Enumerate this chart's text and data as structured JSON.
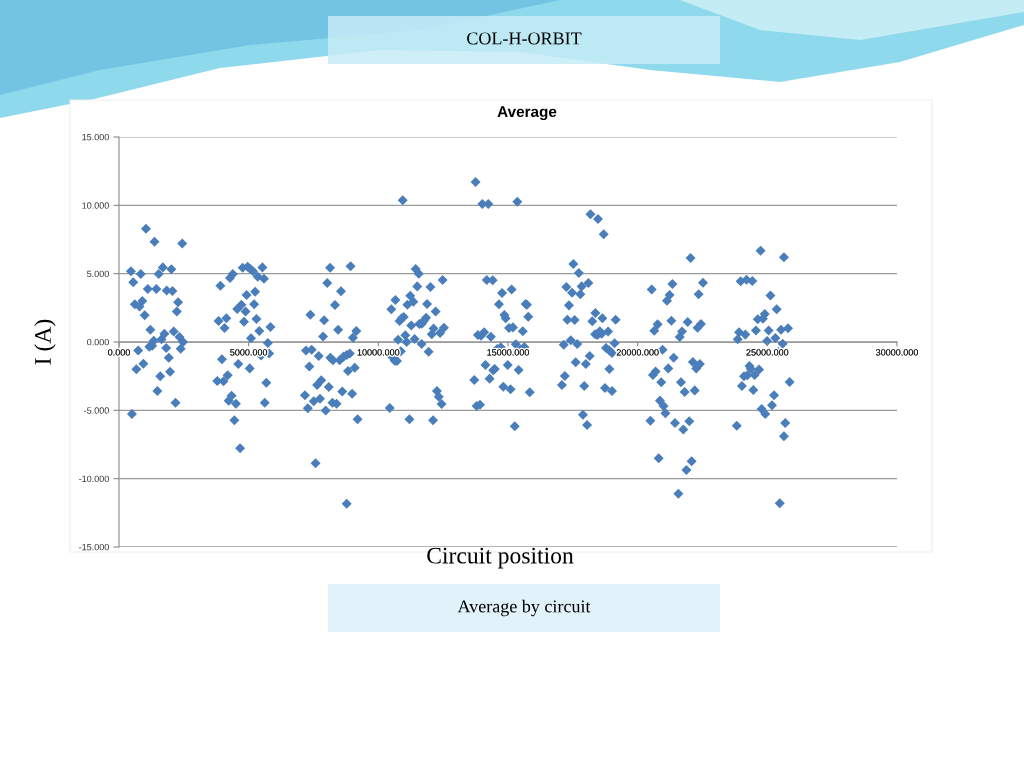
{
  "chart_data": {
    "type": "scatter",
    "title": "Average",
    "xlabel": "Circuit position",
    "ylabel": "I (A)",
    "annotations": [
      "COL-H-ORBIT",
      "Average by circuit"
    ],
    "color": "#4a7ebb",
    "marker": "diamond",
    "grid": "y",
    "xlim": [
      0,
      30000
    ],
    "ylim": [
      -15,
      15
    ],
    "xticks": [
      {
        "value": 0,
        "label": "0.000"
      },
      {
        "value": 5000,
        "label": "5000.000"
      },
      {
        "value": 10000,
        "label": "10000.000"
      },
      {
        "value": 15000,
        "label": "15000.000"
      },
      {
        "value": 20000,
        "label": "20000.000"
      },
      {
        "value": 25000,
        "label": "25000.000"
      },
      {
        "value": 30000,
        "label": "30000.000"
      }
    ],
    "yticks": [
      {
        "value": -15,
        "label": "-15.000"
      },
      {
        "value": -10,
        "label": "-10.000"
      },
      {
        "value": -5,
        "label": "-5.000"
      },
      {
        "value": 0,
        "label": "0.000"
      },
      {
        "value": 5,
        "label": "5.000"
      },
      {
        "value": 10,
        "label": "10.000"
      },
      {
        "value": 15,
        "label": "15.000"
      }
    ],
    "x": [
      460,
      550,
      1040,
      1370,
      2440,
      840,
      1690,
      1530,
      2020,
      1110,
      1440,
      1840,
      2060,
      610,
      790,
      900,
      990,
      2280,
      2230,
      1210,
      1750,
      2110,
      2330,
      2470,
      1340,
      1640,
      1170,
      1280,
      1820,
      2380,
      740,
      1920,
      670,
      940,
      1590,
      1970,
      1480,
      2180,
      500,
      3910,
      3840,
      4070,
      4140,
      4280,
      4390,
      4770,
      4960,
      5060,
      5170,
      5350,
      5530,
      5590,
      4920,
      5250,
      4720,
      4560,
      4880,
      5210,
      4820,
      5300,
      5410,
      5840,
      5090,
      5740,
      5480,
      5790,
      3970,
      4600,
      5040,
      4190,
      3790,
      4030,
      5680,
      4340,
      4230,
      4510,
      5620,
      4450,
      4670,
      7380,
      7210,
      7430,
      7340,
      7700,
      8140,
      8030,
      8930,
      8560,
      8330,
      7910,
      7870,
      8450,
      9150,
      9020,
      8150,
      8250,
      8510,
      8660,
      8780,
      8900,
      8830,
      9090,
      7640,
      7800,
      8090,
      8610,
      8990,
      7170,
      7510,
      7750,
      8230,
      8390,
      7280,
      7970,
      9200,
      7580,
      8780,
      10940,
      10500,
      10660,
      10490,
      10630,
      10720,
      10440,
      10870,
      10760,
      11040,
      11090,
      10820,
      10900,
      10980,
      11120,
      11230,
      11350,
      11440,
      11560,
      11500,
      11270,
      11400,
      11670,
      11580,
      11680,
      11760,
      11840,
      11880,
      12010,
      12210,
      12130,
      12060,
      12380,
      12530,
      12480,
      11940,
      12260,
      12330,
      12440,
      11200,
      12110,
      13750,
      14010,
      14240,
      15360,
      14180,
      14410,
      14770,
      15140,
      14650,
      14860,
      14910,
      15040,
      15190,
      15570,
      15680,
      15730,
      15780,
      13840,
      13960,
      14080,
      14340,
      15300,
      15480,
      15630,
      14580,
      14720,
      14130,
      14990,
      14490,
      14430,
      15410,
      14290,
      13700,
      14820,
      15100,
      15840,
      13790,
      13920,
      15260,
      17520,
      17730,
      17250,
      17470,
      17790,
      17840,
      18100,
      18180,
      18470,
      18690,
      17350,
      17290,
      17570,
      18370,
      18250,
      18640,
      19150,
      18360,
      18450,
      18540,
      18610,
      18860,
      17420,
      17150,
      17670,
      19110,
      18780,
      18900,
      19010,
      18150,
      17610,
      18000,
      18910,
      17190,
      17080,
      17940,
      18740,
      19010,
      17890,
      18050,
      20540,
      22040,
      21340,
      21230,
      21130,
      22350,
      22520,
      20770,
      20640,
      21300,
      21710,
      21620,
      21930,
      22310,
      22440,
      20960,
      21390,
      22130,
      22260,
      22400,
      20690,
      20590,
      21180,
      20910,
      21670,
      21810,
      22200,
      20860,
      21000,
      21070,
      20490,
      21440,
      21760,
      21990,
      20810,
      22080,
      21880,
      21570,
      24740,
      25640,
      23970,
      24200,
      24420,
      25120,
      25360,
      24900,
      24830,
      24630,
      24560,
      25050,
      25530,
      25800,
      23910,
      24150,
      23860,
      24990,
      25310,
      25590,
      25420,
      24310,
      24360,
      24230,
      24100,
      24510,
      24680,
      24020,
      24460,
      25860,
      25260,
      25180,
      24780,
      24920,
      23820,
      25690,
      25640,
      25480
    ],
    "values": [
      5.17,
      4.37,
      8.29,
      7.34,
      7.2,
      4.98,
      5.46,
      4.98,
      5.32,
      3.88,
      3.88,
      3.76,
      3.73,
      2.76,
      2.59,
      3.0,
      1.95,
      2.9,
      2.24,
      0.9,
      0.61,
      0.76,
      0.37,
      0.0,
      0.1,
      0.2,
      -0.34,
      -0.27,
      -0.44,
      -0.49,
      -0.63,
      -1.15,
      -2.0,
      -1.59,
      -2.51,
      -2.17,
      -3.59,
      -4.44,
      -5.27,
      4.12,
      1.54,
      1.02,
      1.73,
      4.68,
      4.98,
      5.44,
      5.51,
      5.34,
      5.17,
      4.78,
      5.46,
      4.63,
      3.44,
      3.68,
      2.73,
      2.41,
      2.24,
      2.76,
      1.49,
      1.68,
      0.8,
      1.1,
      0.27,
      -0.07,
      -0.98,
      -0.85,
      -1.27,
      -1.61,
      -1.93,
      -2.44,
      -2.85,
      -2.88,
      -2.98,
      -3.93,
      -4.29,
      -4.51,
      -4.44,
      -5.73,
      -7.78,
      2.0,
      -0.63,
      -0.56,
      -1.8,
      -1.02,
      5.44,
      4.32,
      5.54,
      3.71,
      2.71,
      1.59,
      0.41,
      0.9,
      0.8,
      0.32,
      -1.15,
      -1.34,
      -1.34,
      -1.07,
      -0.95,
      -0.85,
      -2.12,
      -1.88,
      -3.15,
      -2.8,
      -3.29,
      -3.63,
      -3.78,
      -3.9,
      -4.34,
      -4.15,
      -4.44,
      -4.51,
      -4.85,
      -5.02,
      -5.66,
      -8.88,
      -11.83,
      10.37,
      2.39,
      3.07,
      -1.0,
      -1.37,
      -1.39,
      -4.83,
      -0.68,
      0.17,
      0.49,
      0.0,
      1.54,
      1.73,
      1.83,
      2.73,
      3.39,
      2.95,
      5.34,
      5.0,
      4.07,
      1.2,
      0.22,
      -0.15,
      1.32,
      1.34,
      1.56,
      1.78,
      2.78,
      4.02,
      2.24,
      0.98,
      0.56,
      0.66,
      1.05,
      4.54,
      -0.71,
      -3.59,
      -4.0,
      -4.54,
      -5.66,
      -5.73,
      11.71,
      10.1,
      10.1,
      10.27,
      4.54,
      4.51,
      3.59,
      3.85,
      2.76,
      1.98,
      1.73,
      1.02,
      1.07,
      0.78,
      2.78,
      2.73,
      1.85,
      0.51,
      0.46,
      0.71,
      0.39,
      -0.17,
      -0.56,
      -0.37,
      -0.51,
      -0.39,
      -1.68,
      -1.68,
      -1.98,
      -2.07,
      -2.05,
      -2.68,
      -2.78,
      -3.27,
      -3.46,
      -3.68,
      -4.68,
      -4.59,
      -6.17,
      5.71,
      5.05,
      4.02,
      3.61,
      3.49,
      4.07,
      4.32,
      9.34,
      9.0,
      7.88,
      2.68,
      1.63,
      1.61,
      2.12,
      1.51,
      1.73,
      1.63,
      0.56,
      0.51,
      0.78,
      0.61,
      0.76,
      0.12,
      -0.2,
      -0.15,
      -0.1,
      -0.44,
      -0.61,
      -0.8,
      -1.02,
      -1.49,
      -1.61,
      -1.98,
      -2.49,
      -3.15,
      -3.22,
      -3.37,
      -3.59,
      -5.32,
      -6.07,
      3.85,
      6.15,
      4.24,
      3.44,
      3.02,
      3.49,
      4.34,
      1.29,
      0.83,
      1.56,
      0.76,
      0.37,
      1.46,
      1.05,
      1.32,
      -0.56,
      -1.15,
      -1.46,
      -1.93,
      -1.61,
      -2.15,
      -2.41,
      -1.93,
      -2.95,
      -2.95,
      -3.66,
      -3.54,
      -4.29,
      -4.68,
      -5.22,
      -5.76,
      -5.93,
      -6.41,
      -5.8,
      -8.51,
      -8.73,
      -9.37,
      -11.1,
      6.68,
      6.2,
      4.44,
      4.56,
      4.46,
      3.41,
      2.39,
      2.05,
      1.71,
      1.66,
      0.85,
      0.85,
      0.9,
      1.0,
      0.71,
      0.54,
      0.2,
      0.07,
      0.29,
      -0.12,
      -0.73,
      -1.76,
      -1.95,
      -2.44,
      -2.51,
      -2.41,
      -2.02,
      -3.22,
      -3.51,
      -2.93,
      -3.9,
      -4.63,
      -4.9,
      -5.27,
      -6.12,
      -5.93,
      -6.9,
      -11.8
    ]
  }
}
